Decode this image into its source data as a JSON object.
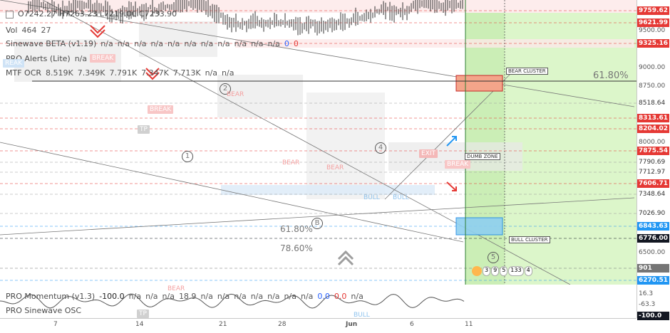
{
  "legend": {
    "ohlc": "O7242.27  H7263.23  L7219.00  C7233.90",
    "vol_label": "Vol",
    "vol_values": [
      "464",
      "27"
    ],
    "sinewave_label": "Sinewave BETA (v1.19)",
    "sinewave_values": [
      "n/a",
      "n/a",
      "n/a",
      "n/a",
      "n/a",
      "n/a",
      "n/a",
      "n/a",
      "n/a",
      "n/a",
      "n/a"
    ],
    "sinewave_blue": "0",
    "sinewave_red": "0",
    "pro_alerts_label": "PRO Alerts (Lite)",
    "pro_alerts_value": "n/a",
    "mtf_label": "MTF OCR",
    "mtf_values": [
      "8.519K",
      "7.349K",
      "7.791K",
      "7.347K",
      "7.713K",
      "n/a",
      "n/a"
    ],
    "momentum_label": "PRO Momentum (v1.3)",
    "momentum_value": "-100.0",
    "momentum_values": [
      "n/a",
      "n/a",
      "n/a",
      "18.9",
      "n/a",
      "n/a",
      "n/a",
      "n/a",
      "n/a",
      "n/a",
      "n/a"
    ],
    "momentum_blue": "0.0",
    "momentum_red": "0.0",
    "momentum_last": "n/a",
    "osc_label": "PRO Sinewave OSC"
  },
  "axis_ticks": [
    "9500.00",
    "9000.00",
    "8750.00",
    "8000.00",
    "6500.00",
    "16.3",
    "-63.3"
  ],
  "price_labels": [
    {
      "text": "9759.62",
      "color": "#e53935"
    },
    {
      "text": "9621.99",
      "color": "#e53935"
    },
    {
      "text": "9325.16",
      "color": "#e53935"
    },
    {
      "text": "8518.64",
      "color": "#ffffff"
    },
    {
      "text": "8313.61",
      "color": "#e53935"
    },
    {
      "text": "8204.02",
      "color": "#e53935"
    },
    {
      "text": "7875.54",
      "color": "#e53935"
    },
    {
      "text": "7790.69",
      "color": "#ffffff"
    },
    {
      "text": "7712.97",
      "color": "#ffffff"
    },
    {
      "text": "7606.71",
      "color": "#e53935"
    },
    {
      "text": "7348.64",
      "color": "#ffffff"
    },
    {
      "text": "7026.90",
      "color": "#ffffff"
    },
    {
      "text": "6843.63",
      "color": "#2196f3"
    },
    {
      "text": "6776.00",
      "color": "#131722"
    },
    {
      "text": "901",
      "color": "#757575"
    },
    {
      "text": "6270.51",
      "color": "#2196f3"
    },
    {
      "text": "-100.0",
      "color": "#131722"
    }
  ],
  "x_ticks": [
    "7",
    "14",
    "21",
    "28",
    "Jun",
    "6",
    "11"
  ],
  "fib": {
    "a": "61.80%",
    "b": "78.60%",
    "c": "61.80%"
  },
  "waves": [
    "1",
    "2",
    "4",
    "B",
    "5"
  ],
  "tags": {
    "break": "BREAK",
    "bear": "BEAR",
    "bull": "BULL",
    "exit": "EXIT",
    "tp": "TP",
    "reak": "REAK"
  },
  "zones": {
    "bear_cluster": "BEAR CLUSTER",
    "bull_cluster": "BULL CLUSTER",
    "dumb_zone": "DUMB ZONE"
  },
  "bubbles": [
    "3",
    "9",
    "5",
    "133",
    "4"
  ],
  "colors": {
    "bear": "#e53935",
    "bull": "#2196f3",
    "zone_green": "#c8f0b0",
    "candle": "#333333"
  }
}
